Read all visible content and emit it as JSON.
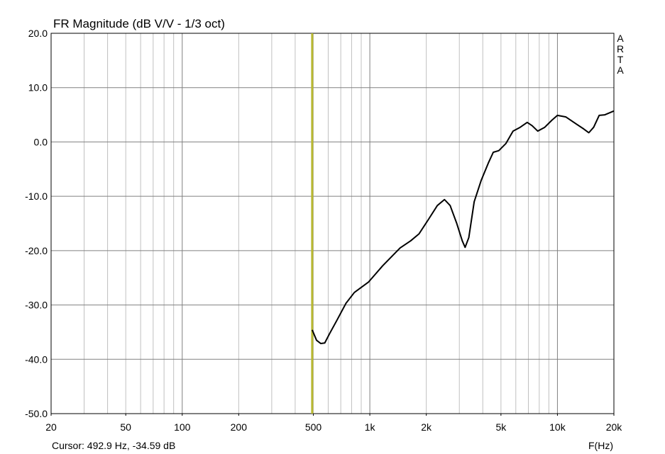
{
  "chart_data": {
    "type": "line",
    "title": "FR Magnitude (dB V/V - 1/3 oct)",
    "x_label": "F(Hz)",
    "watermark": "ARTA",
    "x_scale": "log",
    "grid": true,
    "xlim": [
      20,
      20000
    ],
    "ylim": [
      -50,
      20
    ],
    "xticks": [
      20,
      50,
      100,
      200,
      500,
      {
        "value": 1000,
        "label": "1k"
      },
      {
        "value": 2000,
        "label": "2k"
      },
      {
        "value": 5000,
        "label": "5k"
      },
      {
        "value": 10000,
        "label": "10k"
      },
      {
        "value": 20000,
        "label": "20k"
      }
    ],
    "yticks": [
      {
        "value": 20,
        "label": "20.0"
      },
      {
        "value": 10,
        "label": "10.0"
      },
      {
        "value": 0,
        "label": "0.0"
      },
      {
        "value": -10,
        "label": "-10.0"
      },
      {
        "value": -20,
        "label": "-20.0"
      },
      {
        "value": -30,
        "label": "-30.0"
      },
      {
        "value": -40,
        "label": "-40.0"
      },
      {
        "value": -50,
        "label": "-50.0"
      }
    ],
    "cursor": {
      "x": 492.9,
      "y": -34.59,
      "color": "#b8b830",
      "label": "Cursor: 492.9 Hz, -34.59 dB"
    },
    "x": [
      492.9,
      520,
      548,
      575,
      612,
      668,
      746,
      827,
      983,
      1170,
      1450,
      1650,
      1830,
      2050,
      2290,
      2500,
      2680,
      2900,
      3110,
      3220,
      3370,
      3600,
      3920,
      4280,
      4550,
      4870,
      5310,
      5800,
      6330,
      6900,
      7330,
      7850,
      8560,
      9340,
      10000,
      11100,
      12600,
      13800,
      14700,
      15600,
      16700,
      17900,
      20000
    ],
    "series": [
      {
        "name": "FR",
        "color": "#000000",
        "values": [
          -34.59,
          -36.5,
          -37.1,
          -37.0,
          -35.2,
          -32.8,
          -29.7,
          -27.7,
          -25.8,
          -22.8,
          -19.5,
          -18.2,
          -16.9,
          -14.3,
          -11.7,
          -10.6,
          -11.7,
          -14.9,
          -18.2,
          -19.4,
          -17.6,
          -11.0,
          -7.1,
          -3.9,
          -1.9,
          -1.6,
          -0.3,
          2.0,
          2.7,
          3.6,
          3.0,
          2.0,
          2.7,
          4.0,
          4.9,
          4.6,
          3.3,
          2.4,
          1.7,
          2.7,
          4.9,
          5.0,
          5.7
        ]
      }
    ]
  }
}
